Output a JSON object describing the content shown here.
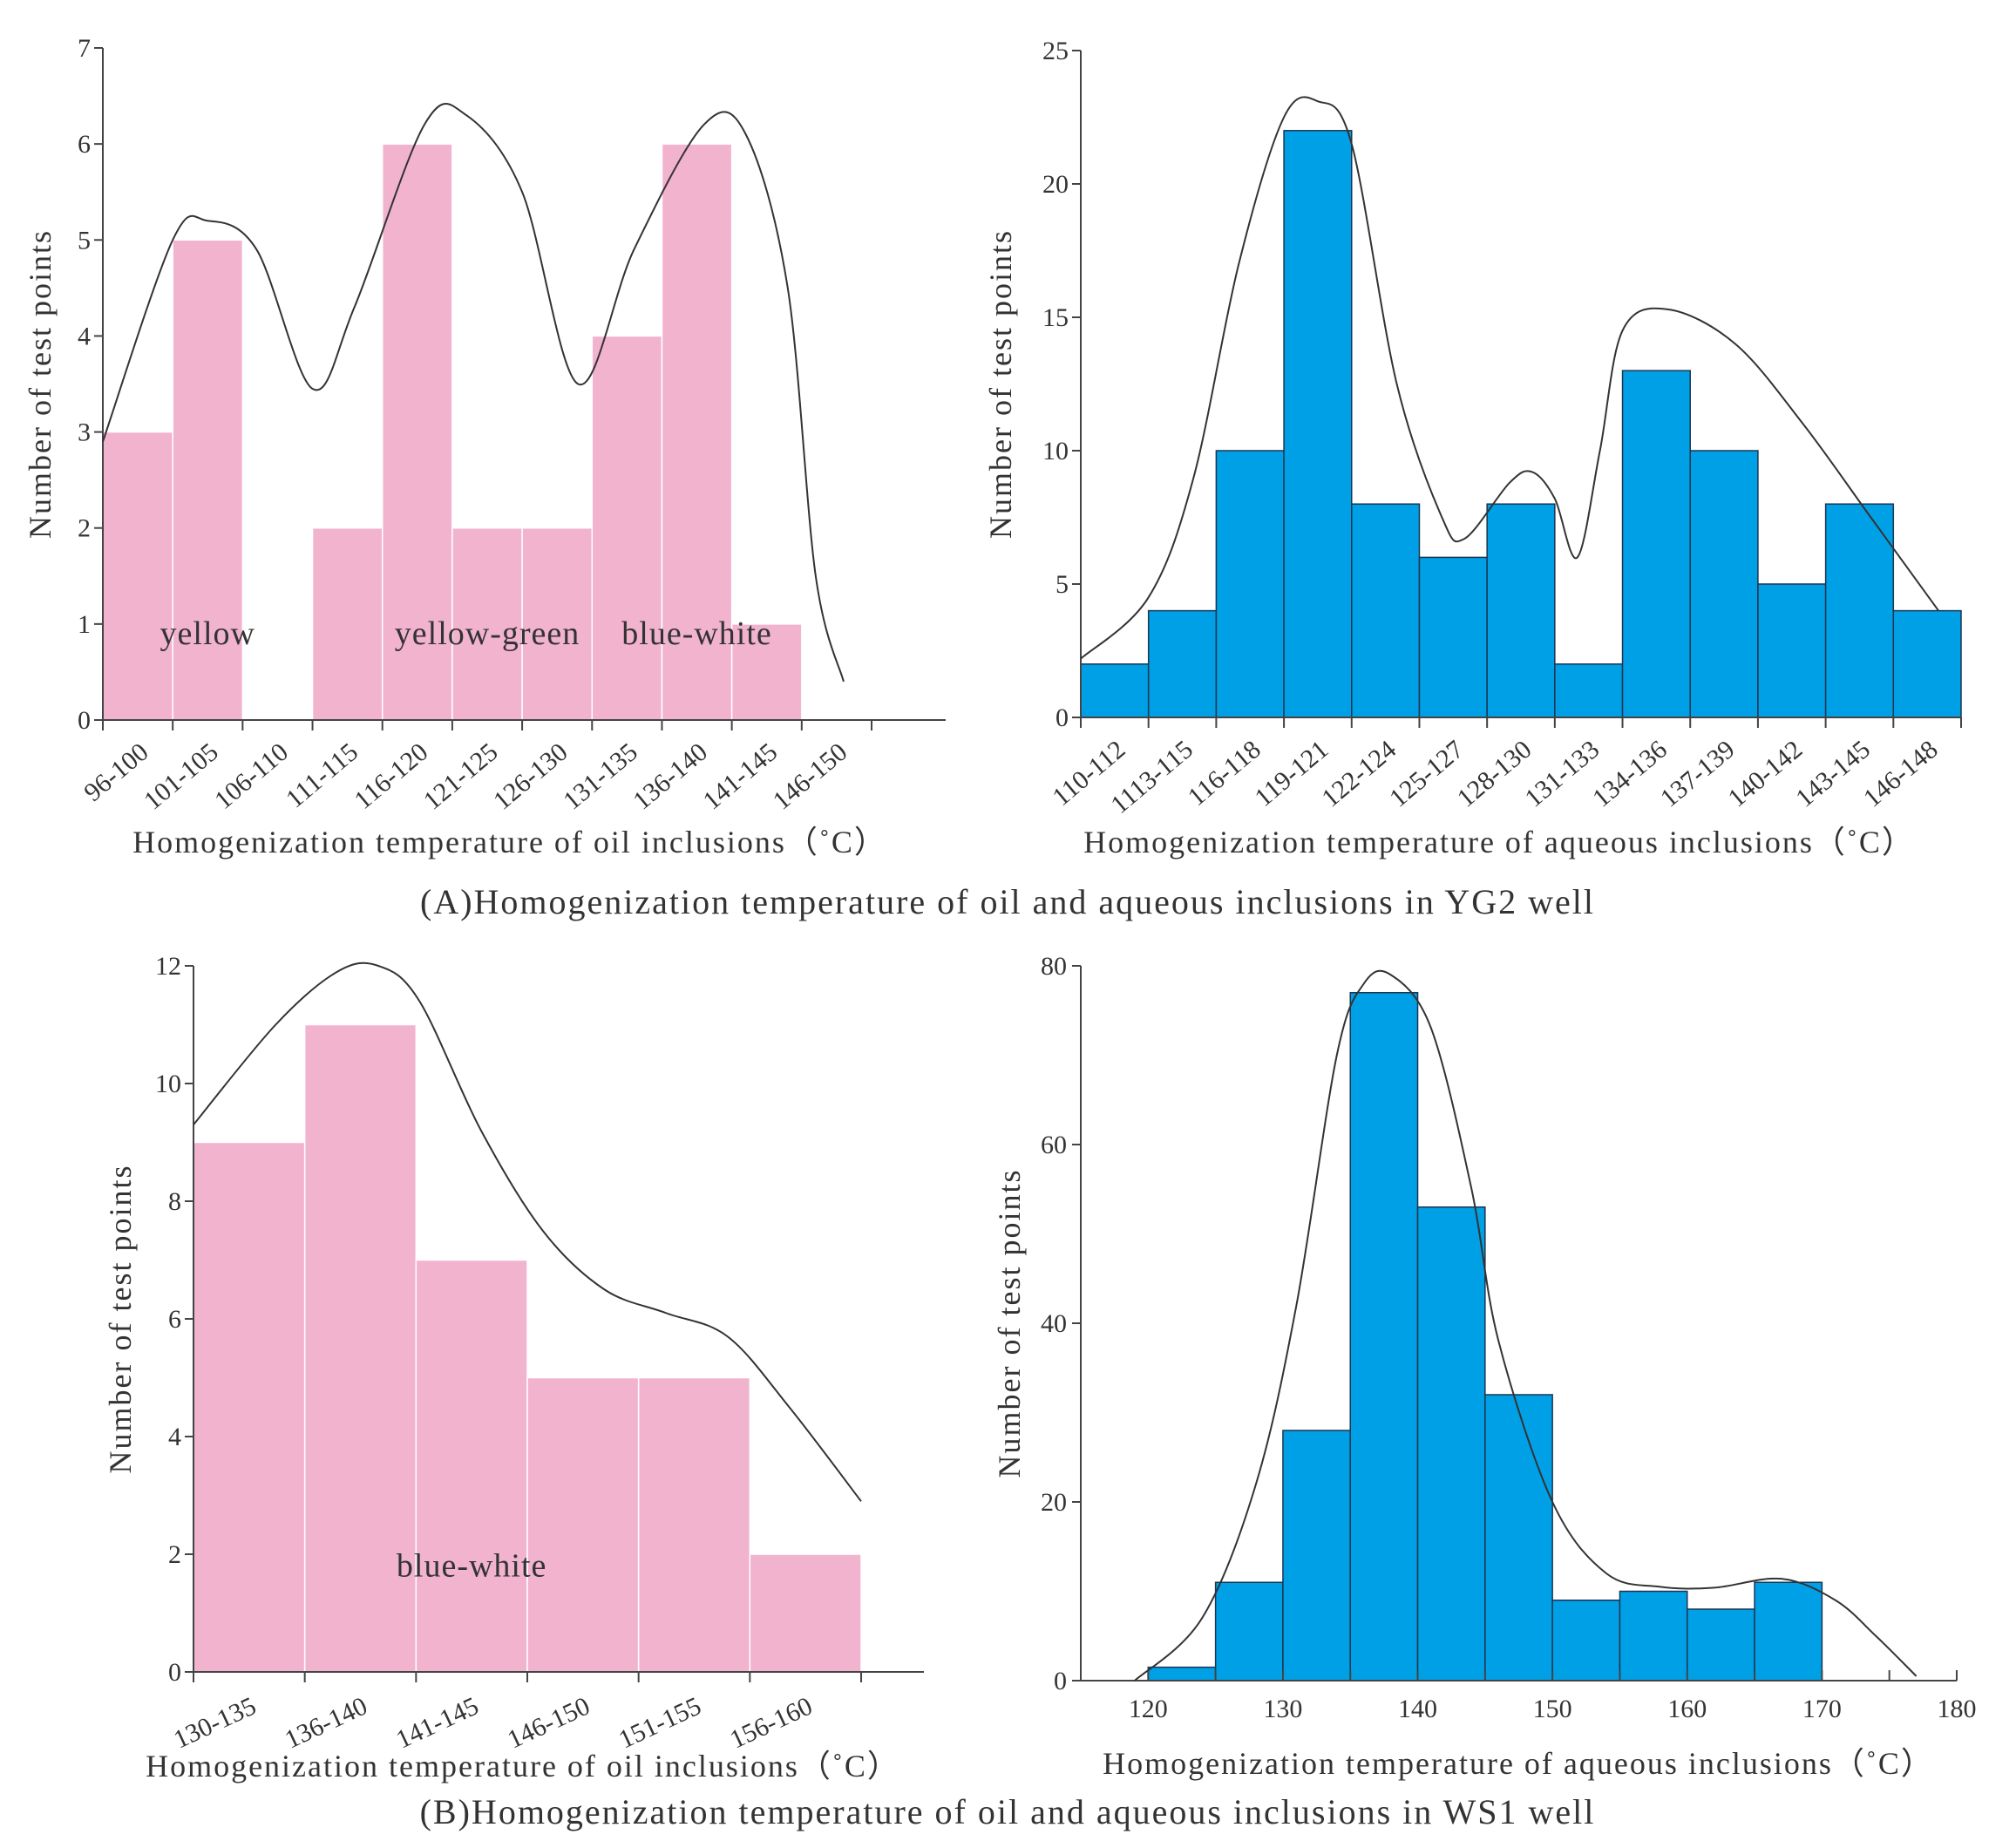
{
  "colors": {
    "pink": "#f2b3cf",
    "blue": "#00a0e6",
    "curve": "#333333"
  },
  "captions": {
    "top": "(A)Homogenization  temperature  of  oil  and aqueous inclusions in YG2 well",
    "bottom": "(B)Homogenization  temperature  of  oil  and aqueous inclusions in WS1 well"
  },
  "chart_data": [
    {
      "id": "A-oil",
      "type": "bar",
      "color": "#f2b3cf",
      "categories": [
        "96-100",
        "101-105",
        "106-110",
        "111-115",
        "116-120",
        "121-125",
        "126-130",
        "131-135",
        "136-140",
        "141-145",
        "146-150"
      ],
      "values": [
        3,
        5,
        0,
        2,
        6,
        2,
        2,
        4,
        6,
        1,
        0
      ],
      "ylim": [
        0,
        7
      ],
      "yticks": [
        0,
        1,
        2,
        3,
        4,
        5,
        6,
        7
      ],
      "xlabel": "Homogenization  temperature  of  oil  inclusions（˚C）",
      "ylabel": "Number of test points",
      "annotations": [
        {
          "text": "yellow",
          "category": "101-105",
          "y": 0.9
        },
        {
          "text": "yellow-green",
          "category": "121-125",
          "y": 0.9
        },
        {
          "text": "blue-white",
          "category": "136-140",
          "y": 0.9
        }
      ],
      "trend_curve": [
        [
          96,
          2.9
        ],
        [
          101,
          5.0
        ],
        [
          103.5,
          5.2
        ],
        [
          107,
          4.9
        ],
        [
          111,
          3.45
        ],
        [
          114,
          4.3
        ],
        [
          119,
          6.2
        ],
        [
          122,
          6.3
        ],
        [
          126,
          5.5
        ],
        [
          130,
          3.5
        ],
        [
          134,
          4.9
        ],
        [
          139,
          6.2
        ],
        [
          142,
          6.1
        ],
        [
          145,
          4.5
        ],
        [
          147,
          1.5
        ],
        [
          149,
          0.4
        ]
      ],
      "curve_x_domain": [
        96,
        151
      ]
    },
    {
      "id": "A-aqueous",
      "type": "bar",
      "color": "#00a0e6",
      "categories": [
        "110-112",
        "1113-115",
        "116-118",
        "119-121",
        "122-124",
        "125-127",
        "128-130",
        "131-133",
        "134-136",
        "137-139",
        "140-142",
        "143-145",
        "146-148"
      ],
      "values": [
        2,
        4,
        10,
        22,
        8,
        6,
        8,
        2,
        13,
        10,
        5,
        8,
        4
      ],
      "ylim": [
        0,
        25
      ],
      "yticks": [
        0,
        5,
        10,
        15,
        20,
        25
      ],
      "xlabel": "Homogenization  temperature  of  aqueous  inclusions（˚C）",
      "ylabel": "Number of test points",
      "trend_curve": [
        [
          110,
          2.2
        ],
        [
          113,
          4.5
        ],
        [
          115,
          9
        ],
        [
          117,
          17
        ],
        [
          119,
          22.5
        ],
        [
          120.5,
          23.1
        ],
        [
          122,
          21.5
        ],
        [
          124,
          12.5
        ],
        [
          126,
          7.5
        ],
        [
          127,
          6.7
        ],
        [
          129,
          8.8
        ],
        [
          130,
          9.2
        ],
        [
          131,
          8.2
        ],
        [
          132,
          6.0
        ],
        [
          133,
          10
        ],
        [
          134,
          14.5
        ],
        [
          136,
          15.3
        ],
        [
          139,
          14
        ],
        [
          142,
          11
        ],
        [
          145,
          7.5
        ],
        [
          148,
          4
        ]
      ],
      "curve_x_domain": [
        110,
        149
      ]
    },
    {
      "id": "B-oil",
      "type": "bar",
      "color": "#f2b3cf",
      "categories": [
        "130-135",
        "136-140",
        "141-145",
        "146-150",
        "151-155",
        "156-160"
      ],
      "values": [
        9,
        11,
        7,
        5,
        5,
        2
      ],
      "ylim": [
        0,
        12
      ],
      "yticks": [
        0,
        2,
        4,
        6,
        8,
        10,
        12
      ],
      "xlabel": "Homogenization  temperature  of  oil  inclusions（˚C）",
      "ylabel": "Number of test points",
      "annotations": [
        {
          "text": "blue-white",
          "category": "141-145",
          "y": 1.8
        }
      ],
      "trend_curve": [
        [
          129,
          9.3
        ],
        [
          133,
          11
        ],
        [
          136,
          11.9
        ],
        [
          138,
          12
        ],
        [
          140,
          11.4
        ],
        [
          143,
          9.2
        ],
        [
          146,
          7.5
        ],
        [
          149,
          6.5
        ],
        [
          152,
          6.1
        ],
        [
          155,
          5.7
        ],
        [
          158,
          4.5
        ],
        [
          161.5,
          2.9
        ]
      ],
      "curve_x_domain": [
        129,
        161.5
      ]
    },
    {
      "id": "B-aqueous",
      "type": "histogram",
      "color": "#00a0e6",
      "bins": [
        [
          120,
          125,
          1.5
        ],
        [
          125,
          130,
          11
        ],
        [
          130,
          135,
          28
        ],
        [
          135,
          140,
          77
        ],
        [
          140,
          145,
          53
        ],
        [
          145,
          150,
          32
        ],
        [
          150,
          155,
          9
        ],
        [
          155,
          160,
          10
        ],
        [
          160,
          165,
          8
        ],
        [
          165,
          170,
          11
        ]
      ],
      "xlim": [
        115,
        180
      ],
      "xticks": [
        120,
        130,
        140,
        150,
        160,
        170,
        180
      ],
      "ylim": [
        0,
        80
      ],
      "yticks": [
        0,
        20,
        40,
        60,
        80
      ],
      "xlabel": "Homogenization  temperature  of  aqueous  inclusions（˚C）",
      "ylabel": "Number of test points",
      "trend_curve": [
        [
          119,
          0
        ],
        [
          124,
          7
        ],
        [
          128,
          22
        ],
        [
          131,
          42
        ],
        [
          134,
          70
        ],
        [
          136,
          78
        ],
        [
          138,
          79
        ],
        [
          141,
          73
        ],
        [
          144,
          55
        ],
        [
          146,
          38
        ],
        [
          150,
          20
        ],
        [
          154,
          12
        ],
        [
          158,
          10.5
        ],
        [
          162,
          10.4
        ],
        [
          167,
          11.4
        ],
        [
          171,
          9
        ],
        [
          174,
          5
        ],
        [
          177,
          0.5
        ]
      ]
    }
  ]
}
